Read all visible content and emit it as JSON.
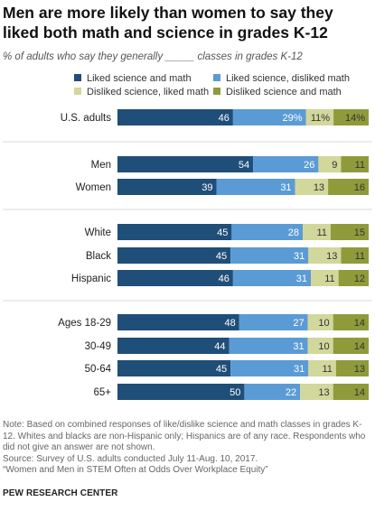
{
  "title": "Men are more likely than women to say they liked both math and science in grades K-12",
  "subtitle": "% of adults who say they generally _____ classes in grades K-12",
  "legend": [
    {
      "label": "Liked science and math",
      "color": "#1f4e79"
    },
    {
      "label": "Liked science, disliked math",
      "color": "#5b9bd5"
    },
    {
      "label": "Disliked science, liked math",
      "color": "#d2d79b"
    },
    {
      "label": "Disliked science and math",
      "color": "#8f9b3a"
    }
  ],
  "chart_data": {
    "type": "bar",
    "orientation": "horizontal",
    "stacked": true,
    "title": "Men are more likely than women to say they liked both math and science in grades K-12",
    "subtitle": "% of adults who say they generally _____ classes in grades K-12",
    "categories": [
      "U.S. adults",
      "Men",
      "Women",
      "White",
      "Black",
      "Hispanic",
      "Ages 18-29",
      "30-49",
      "50-64",
      "65+"
    ],
    "groups": [
      [
        "U.S. adults"
      ],
      [
        "Men",
        "Women"
      ],
      [
        "White",
        "Black",
        "Hispanic"
      ],
      [
        "Ages 18-29",
        "30-49",
        "50-64",
        "65+"
      ]
    ],
    "series": [
      {
        "name": "Liked science and math",
        "values": [
          46,
          54,
          39,
          45,
          45,
          46,
          48,
          44,
          45,
          50
        ],
        "color": "#1f4e79"
      },
      {
        "name": "Liked science, disliked math",
        "values": [
          29,
          26,
          31,
          28,
          31,
          31,
          27,
          31,
          31,
          22
        ],
        "color": "#5b9bd5"
      },
      {
        "name": "Disliked science, liked math",
        "values": [
          11,
          9,
          13,
          11,
          13,
          11,
          10,
          10,
          11,
          13
        ],
        "color": "#d2d79b"
      },
      {
        "name": "Disliked science and math",
        "values": [
          14,
          11,
          16,
          15,
          11,
          12,
          14,
          14,
          13,
          14
        ],
        "color": "#8f9b3a"
      }
    ],
    "labels": [
      [
        "46",
        "29%",
        "11%",
        "14%"
      ],
      [
        "54",
        "26",
        "9",
        "11"
      ],
      [
        "39",
        "31",
        "13",
        "16"
      ],
      [
        "45",
        "28",
        "11",
        "15"
      ],
      [
        "45",
        "31",
        "13",
        "11"
      ],
      [
        "46",
        "31",
        "11",
        "12"
      ],
      [
        "48",
        "27",
        "10",
        "14"
      ],
      [
        "44",
        "31",
        "10",
        "14"
      ],
      [
        "45",
        "31",
        "11",
        "13"
      ],
      [
        "50",
        "22",
        "13",
        "14"
      ]
    ],
    "xlim": [
      0,
      100
    ],
    "grid": false
  },
  "notes": [
    "Note: Based on combined responses of like/dislike science and math classes in grades K-12. Whites and blacks are non-Hispanic only; Hispanics are of any race. Respondents who did not give an answer are not shown.",
    "Source: Survey of U.S. adults conducted July 11-Aug. 10, 2017.",
    "“Women and Men in STEM Often at Odds Over Workplace Equity”"
  ],
  "logo": "PEW RESEARCH CENTER"
}
